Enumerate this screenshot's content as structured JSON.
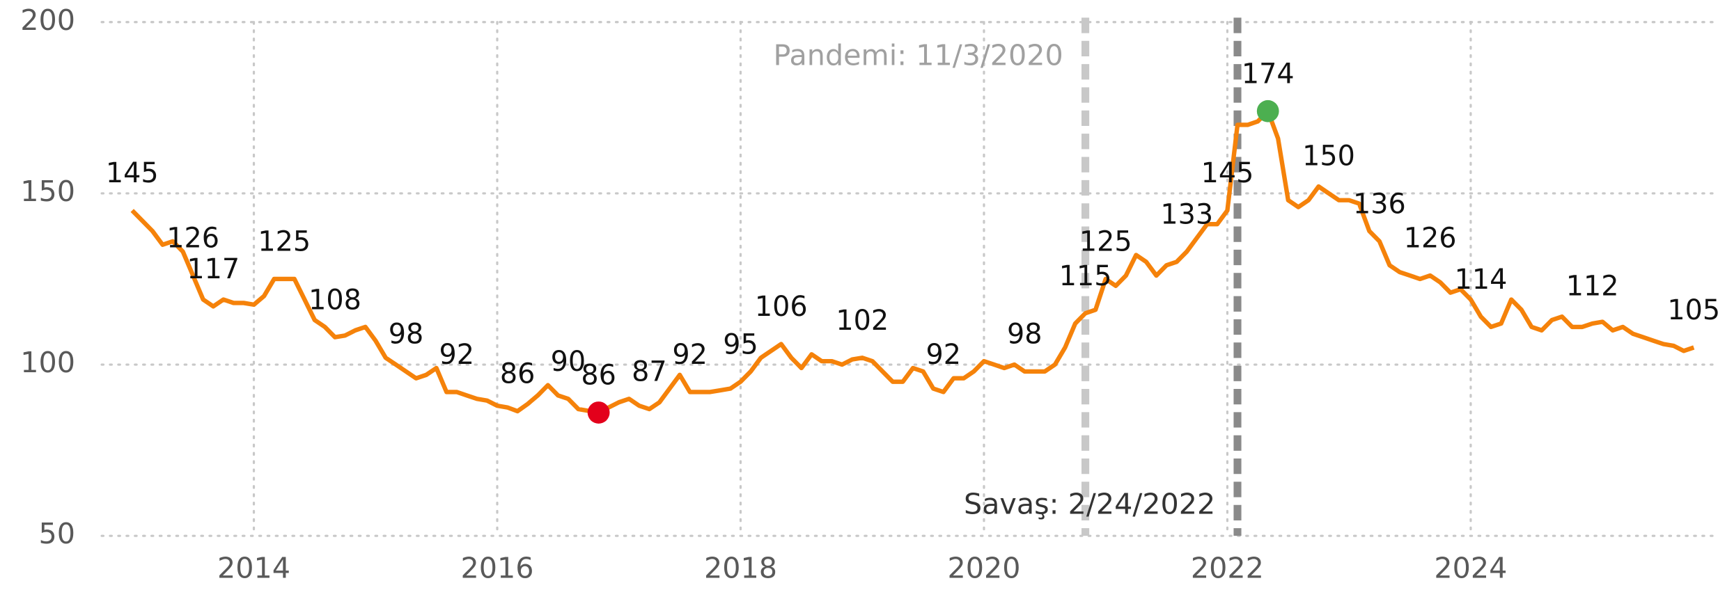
{
  "chart_data": {
    "type": "line",
    "x": [
      "2013-01",
      "2013-02",
      "2013-03",
      "2013-04",
      "2013-05",
      "2013-06",
      "2013-07",
      "2013-08",
      "2013-09",
      "2013-10",
      "2013-11",
      "2013-12",
      "2014-01",
      "2014-02",
      "2014-03",
      "2014-04",
      "2014-05",
      "2014-06",
      "2014-07",
      "2014-08",
      "2014-09",
      "2014-10",
      "2014-11",
      "2014-12",
      "2015-01",
      "2015-02",
      "2015-03",
      "2015-04",
      "2015-05",
      "2015-06",
      "2015-07",
      "2015-08",
      "2015-09",
      "2015-10",
      "2015-11",
      "2015-12",
      "2016-01",
      "2016-02",
      "2016-03",
      "2016-04",
      "2016-05",
      "2016-06",
      "2016-07",
      "2016-08",
      "2016-09",
      "2016-10",
      "2016-11",
      "2016-12",
      "2017-01",
      "2017-02",
      "2017-03",
      "2017-04",
      "2017-05",
      "2017-06",
      "2017-07",
      "2017-08",
      "2017-09",
      "2017-10",
      "2017-11",
      "2017-12",
      "2018-01",
      "2018-02",
      "2018-03",
      "2018-04",
      "2018-05",
      "2018-06",
      "2018-07",
      "2018-08",
      "2018-09",
      "2018-10",
      "2018-11",
      "2018-12",
      "2019-01",
      "2019-02",
      "2019-03",
      "2019-04",
      "2019-05",
      "2019-06",
      "2019-07",
      "2019-08",
      "2019-09",
      "2019-10",
      "2019-11",
      "2019-12",
      "2020-01",
      "2020-02",
      "2020-03",
      "2020-04",
      "2020-05",
      "2020-06",
      "2020-07",
      "2020-08",
      "2020-09",
      "2020-10",
      "2020-11",
      "2020-12",
      "2021-01",
      "2021-02",
      "2021-03",
      "2021-04",
      "2021-05",
      "2021-06",
      "2021-07",
      "2021-08",
      "2021-09",
      "2021-10",
      "2021-11",
      "2021-12",
      "2022-01",
      "2022-02",
      "2022-03",
      "2022-04",
      "2022-05",
      "2022-06",
      "2022-07",
      "2022-08",
      "2022-09",
      "2022-10",
      "2022-11",
      "2022-12",
      "2023-01",
      "2023-02",
      "2023-03",
      "2023-04",
      "2023-05",
      "2023-06",
      "2023-07",
      "2023-08",
      "2023-09",
      "2023-10",
      "2023-11",
      "2023-12",
      "2024-01",
      "2024-02",
      "2024-03",
      "2024-04",
      "2024-05",
      "2024-06",
      "2024-07",
      "2024-08",
      "2024-09",
      "2024-10",
      "2024-11",
      "2024-12",
      "2025-01",
      "2025-02",
      "2025-03",
      "2025-04",
      "2025-05",
      "2025-06",
      "2025-07",
      "2025-08",
      "2025-09",
      "2025-10",
      "2025-11"
    ],
    "series": [
      {
        "color": "#f5820a",
        "values": [
          145,
          142,
          139,
          135,
          136,
          133,
          126,
          119,
          117,
          119,
          118,
          118,
          117.5,
          120,
          125,
          125,
          125,
          119,
          113,
          111,
          108,
          108.5,
          110,
          111,
          107,
          102,
          100,
          98,
          96,
          97,
          99,
          92,
          92,
          91,
          90,
          89.5,
          88,
          87.5,
          86.4,
          88.5,
          91,
          94,
          91,
          90,
          87,
          86.5,
          86,
          87.5,
          89,
          90,
          88,
          87,
          89,
          93,
          97,
          92,
          92,
          92,
          92.5,
          93,
          95,
          98,
          102,
          104,
          106,
          102,
          99,
          103,
          101,
          101,
          100,
          101.5,
          102,
          101,
          98,
          95,
          95,
          99,
          98,
          93,
          92,
          96,
          96,
          98,
          101,
          100,
          99,
          100,
          98,
          98,
          98,
          100,
          105,
          112,
          115,
          116,
          125,
          123,
          126,
          132,
          130,
          126,
          129,
          130,
          133,
          137,
          141,
          141,
          145,
          170,
          170,
          171,
          174,
          166,
          148,
          146,
          148,
          152,
          150,
          148,
          148,
          147,
          139,
          136,
          129,
          127,
          126,
          125,
          126,
          124,
          121,
          122,
          119,
          114,
          111,
          112,
          119,
          116,
          111,
          110,
          113,
          114,
          111,
          111,
          112,
          112.5,
          110,
          111,
          109,
          108,
          107,
          106,
          105.5,
          104,
          105
        ],
        "value_labels": [
          "145",
          null,
          null,
          null,
          null,
          null,
          "126",
          null,
          "117",
          null,
          null,
          null,
          null,
          null,
          null,
          "125",
          null,
          null,
          null,
          null,
          "108",
          null,
          null,
          null,
          null,
          null,
          null,
          "98",
          null,
          null,
          null,
          null,
          "92",
          null,
          null,
          null,
          null,
          null,
          "86",
          null,
          null,
          null,
          null,
          "90",
          null,
          null,
          "86",
          null,
          null,
          null,
          null,
          "87",
          null,
          null,
          null,
          "92",
          null,
          null,
          null,
          null,
          "95",
          null,
          null,
          null,
          "106",
          null,
          null,
          null,
          null,
          null,
          null,
          null,
          "102",
          null,
          null,
          null,
          null,
          null,
          null,
          null,
          "92",
          null,
          null,
          null,
          null,
          null,
          null,
          null,
          "98",
          null,
          null,
          null,
          null,
          null,
          "115",
          null,
          "125",
          null,
          null,
          null,
          null,
          null,
          null,
          null,
          "133",
          null,
          null,
          null,
          "145",
          null,
          null,
          null,
          "174",
          null,
          null,
          null,
          null,
          null,
          "150",
          null,
          null,
          null,
          null,
          "136",
          null,
          null,
          null,
          null,
          "126",
          null,
          null,
          null,
          null,
          "114",
          null,
          null,
          null,
          null,
          null,
          null,
          null,
          null,
          null,
          null,
          "112",
          null,
          null,
          null,
          null,
          null,
          null,
          null,
          null,
          null,
          "105"
        ]
      }
    ],
    "markers": [
      {
        "x": "2016-11",
        "y": 86,
        "color": "#e3001b"
      },
      {
        "x": "2022-05",
        "y": 174,
        "color": "#4caf50"
      }
    ],
    "annotations": [
      {
        "x": "2020-11",
        "label": "Pandemi: 11/3/2020",
        "color": "#c8c8c8",
        "text_color": "#a0a0a0",
        "position": "top"
      },
      {
        "x": "2022-02",
        "label": "Savaş: 2/24/2022",
        "color": "#8a8a8a",
        "text_color": "#333333",
        "position": "bottom"
      }
    ],
    "xlim": [
      "2012-10",
      "2026-01"
    ],
    "xticks": [
      {
        "value": "2014-01",
        "label": "2014"
      },
      {
        "value": "2016-01",
        "label": "2016"
      },
      {
        "value": "2018-01",
        "label": "2018"
      },
      {
        "value": "2020-01",
        "label": "2020"
      },
      {
        "value": "2022-01",
        "label": "2022"
      },
      {
        "value": "2024-01",
        "label": "2024"
      }
    ],
    "ylim": [
      50,
      200
    ],
    "yticks": [
      50,
      100,
      150,
      200
    ],
    "grid": true
  }
}
